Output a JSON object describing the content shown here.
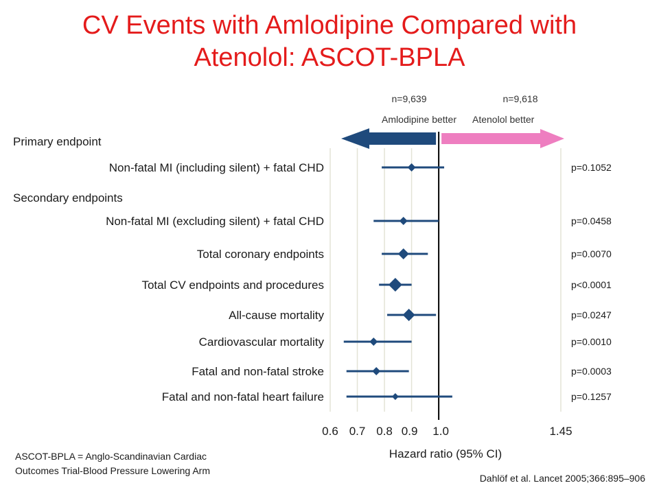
{
  "title": {
    "line1": "CV Events with Amlodipine Compared with",
    "line2": "Atenolol: ASCOT-BPLA"
  },
  "colors": {
    "title": "#e41b1b",
    "marker": "#1f4a7c",
    "arrow_left": "#1f4a7c",
    "arrow_right": "#ee7ec0",
    "gridline": "#e3e3d6",
    "refline": "#000000"
  },
  "header": {
    "left_n": "n=9,639",
    "right_n": "n=9,618",
    "left_label": "Amlodipine better",
    "right_label": "Atenolol better"
  },
  "chart_data": {
    "type": "forest",
    "xlabel": "Hazard ratio (95% CI)",
    "xlim": [
      0.6,
      1.45
    ],
    "xticks": [
      {
        "value": 0.6,
        "label": "0.6"
      },
      {
        "value": 0.7,
        "label": "0.7"
      },
      {
        "value": 0.8,
        "label": "0.8"
      },
      {
        "value": 0.9,
        "label": "0.9"
      },
      {
        "value": 1.0,
        "label": "1.0"
      },
      {
        "value": 1.45,
        "label": "1.45"
      }
    ],
    "gridlines": [
      0.6,
      0.7,
      0.8,
      0.9,
      1.45
    ],
    "reference": 1.0,
    "sections": [
      {
        "label": "Primary endpoint",
        "after_row": -1
      },
      {
        "label": "Secondary endpoints",
        "after_row": 0
      }
    ],
    "rows": [
      {
        "label": "Non-fatal MI (including silent) + fatal CHD",
        "hr": 0.9,
        "lo": 0.79,
        "hi": 1.02,
        "p": "p=0.1052",
        "size": 6
      },
      {
        "label": "Non-fatal MI (excluding silent) + fatal CHD",
        "hr": 0.87,
        "lo": 0.76,
        "hi": 1.0,
        "p": "p=0.0458",
        "size": 6
      },
      {
        "label": "Total coronary endpoints",
        "hr": 0.87,
        "lo": 0.79,
        "hi": 0.96,
        "p": "p=0.0070",
        "size": 8
      },
      {
        "label": "Total CV endpoints and procedures",
        "hr": 0.84,
        "lo": 0.78,
        "hi": 0.9,
        "p": "p<0.0001",
        "size": 10
      },
      {
        "label": "All-cause mortality",
        "hr": 0.89,
        "lo": 0.81,
        "hi": 0.99,
        "p": "p=0.0247",
        "size": 9
      },
      {
        "label": "Cardiovascular mortality",
        "hr": 0.76,
        "lo": 0.65,
        "hi": 0.9,
        "p": "p=0.0010",
        "size": 6
      },
      {
        "label": "Fatal and non-fatal stroke",
        "hr": 0.77,
        "lo": 0.66,
        "hi": 0.89,
        "p": "p=0.0003",
        "size": 6
      },
      {
        "label": "Fatal and non-fatal heart failure",
        "hr": 0.84,
        "lo": 0.66,
        "hi": 1.05,
        "p": "p=0.1257",
        "size": 5
      }
    ]
  },
  "footnote": {
    "line1": "ASCOT-BPLA = Anglo-Scandinavian Cardiac",
    "line2": "Outcomes Trial-Blood Pressure Lowering Arm"
  },
  "source": "Dahlöf et al. Lancet 2005;366:895–906"
}
